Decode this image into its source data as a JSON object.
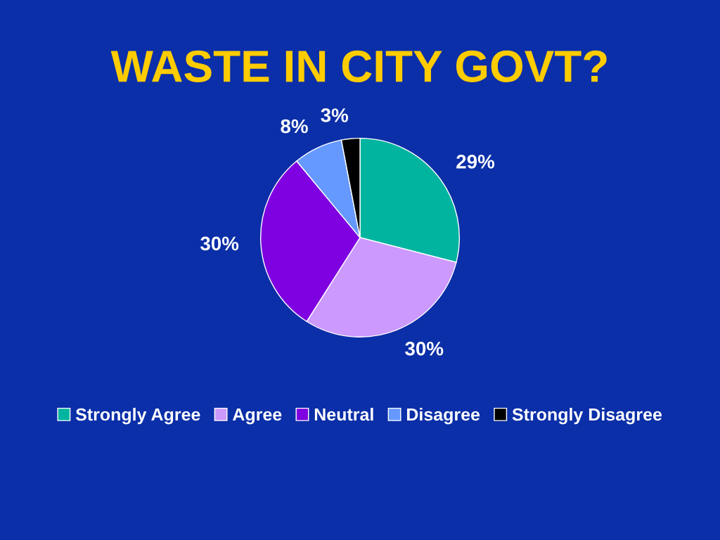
{
  "chart_data": {
    "type": "pie",
    "title": "WASTE IN CITY GOVT?",
    "categories": [
      "Strongly Agree",
      "Agree",
      "Neutral",
      "Disagree",
      "Strongly Disagree"
    ],
    "values": [
      29,
      30,
      30,
      8,
      3
    ],
    "value_labels": [
      "29%",
      "30%",
      "30%",
      "8%",
      "3%"
    ],
    "colors": [
      "#00b4a0",
      "#cc99ff",
      "#7f00e0",
      "#6699ff",
      "#000000"
    ],
    "legend": "bottom"
  }
}
